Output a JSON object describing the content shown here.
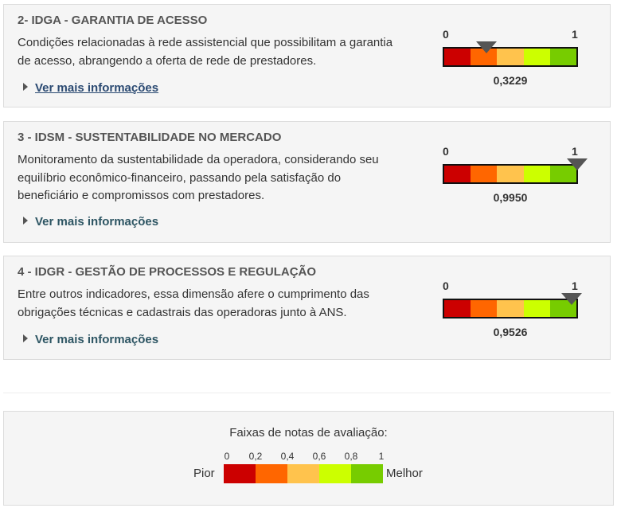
{
  "scale": {
    "min_label": "0",
    "max_label": "1",
    "colors": [
      "#cc0000",
      "#ff6600",
      "#ffc34d",
      "#ccff00",
      "#77cc00"
    ]
  },
  "cards": [
    {
      "title": "2- IDGA - GARANTIA DE ACESSO",
      "description": "Condições relacionadas à rede assistencial que possibilitam a garantia de acesso, abrangendo a oferta de rede de prestadores.",
      "more_label": "Ver mais informações",
      "value": 0.3229,
      "value_label": "0,3229"
    },
    {
      "title": "3 - IDSM - SUSTENTABILIDADE NO MERCADO",
      "description": "Monitoramento da sustentabilidade da operadora, considerando seu equilíbrio econômico-financeiro, passando pela satisfação do beneficiário e compromissos com prestadores.",
      "more_label": "Ver mais informações",
      "value": 0.995,
      "value_label": "0,9950"
    },
    {
      "title": "4 - IDGR - GESTÃO DE PROCESSOS E REGULAÇÃO",
      "description": "Entre outros indicadores, essa dimensão afere o cumprimento das obrigações técnicas e cadastrais das operadoras junto à ANS.",
      "more_label": "Ver mais informações",
      "value": 0.9526,
      "value_label": "0,9526"
    }
  ],
  "legend": {
    "title": "Faixas de notas de avaliação:",
    "ticks": [
      "0",
      "0,2",
      "0,4",
      "0,6",
      "0,8",
      "1"
    ],
    "worst_label": "Pior",
    "best_label": "Melhor"
  }
}
